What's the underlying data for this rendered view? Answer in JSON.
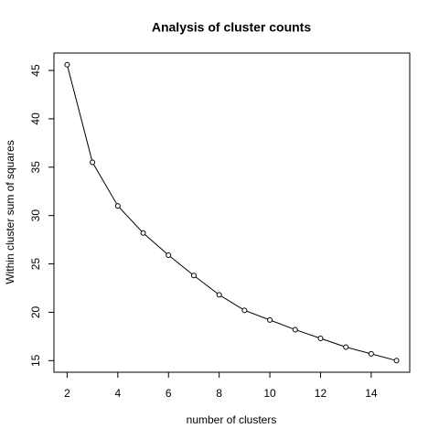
{
  "chart_data": {
    "type": "line",
    "title": "Analysis of cluster counts",
    "x_label": "number of clusters",
    "y_label": "Within cluster sum of squares",
    "x": [
      2,
      3,
      4,
      5,
      6,
      7,
      8,
      9,
      10,
      11,
      12,
      13,
      14,
      15
    ],
    "values": [
      45.6,
      35.5,
      31.0,
      28.2,
      25.9,
      23.8,
      21.8,
      20.2,
      19.2,
      18.2,
      17.3,
      16.4,
      15.7,
      15.0
    ],
    "color": "#000000",
    "xlim": [
      1.48,
      15.52
    ],
    "xticks": [
      2,
      4,
      6,
      8,
      10,
      12,
      14
    ],
    "ylim": [
      13.8,
      46.8
    ],
    "yticks": [
      15,
      20,
      25,
      30,
      35,
      40,
      45
    ]
  }
}
